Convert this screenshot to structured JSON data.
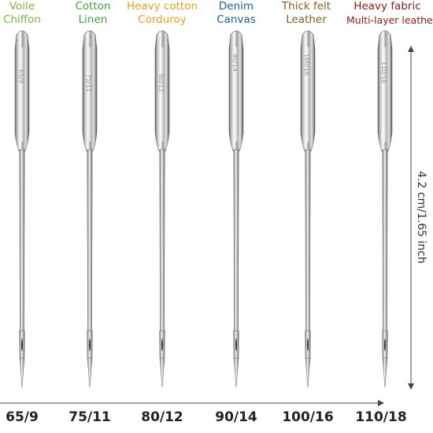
{
  "needles": [
    {
      "fabric_line1": "Voile",
      "fabric_line2": "Chiffon",
      "label_color": "#7cb342",
      "size": "65/9",
      "engraving": "65/9"
    },
    {
      "fabric_line1": "Cotton",
      "fabric_line2": "Linen",
      "label_color": "#43a047",
      "size": "75/11",
      "engraving": "75/11"
    },
    {
      "fabric_line1": "Heavy cotton",
      "fabric_line2": "Corduroy",
      "label_color": "#e0a020",
      "size": "80/12",
      "engraving": "80/12"
    },
    {
      "fabric_line1": "Denim",
      "fabric_line2": "Canvas",
      "label_color": "#1f5b8f",
      "size": "90/14",
      "engraving": "90/14"
    },
    {
      "fabric_line1": "Thick felt",
      "fabric_line2": "Leather",
      "label_color": "#8b5a2b",
      "size": "100/16",
      "engraving": "100/16"
    },
    {
      "fabric_line1": "Heavy fabric",
      "fabric_line2": "Multi-layer leather",
      "label_color": "#8b1a1a",
      "size": "110/18",
      "engraving": "110/18"
    }
  ],
  "dimension_label": "4.2 cm/1.65 inch"
}
